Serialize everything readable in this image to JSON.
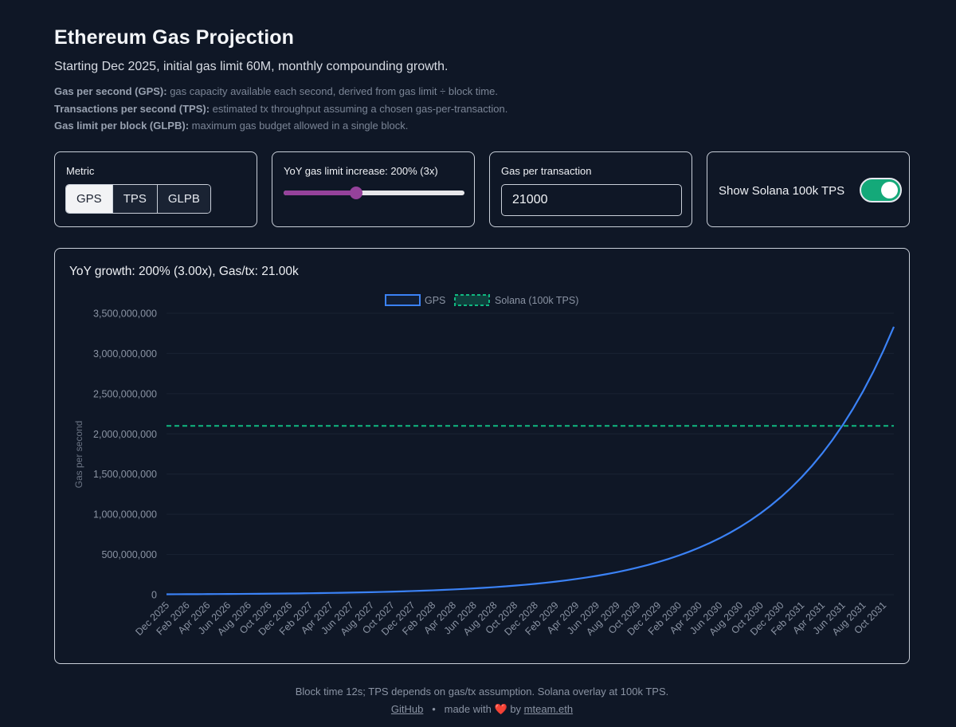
{
  "header": {
    "title": "Ethereum Gas Projection",
    "subtitle": "Starting Dec 2025, initial gas limit 60M, monthly compounding growth."
  },
  "definitions": [
    {
      "term": "Gas per second (GPS):",
      "text": " gas capacity available each second, derived from gas limit ÷ block time."
    },
    {
      "term": "Transactions per second (TPS):",
      "text": " estimated tx throughput assuming a chosen gas-per-transaction."
    },
    {
      "term": "Gas limit per block (GLPB):",
      "text": " maximum gas budget allowed in a single block."
    }
  ],
  "controls": {
    "metric": {
      "label": "Metric",
      "options": [
        "GPS",
        "TPS",
        "GLPB"
      ],
      "selected": "GPS"
    },
    "growth": {
      "label": "YoY gas limit increase: 200% (3x)",
      "value": 200,
      "min": 0,
      "max": 500
    },
    "gas_per_tx": {
      "label": "Gas per transaction",
      "value": "21000"
    },
    "solana": {
      "label": "Show Solana 100k TPS",
      "enabled": true
    }
  },
  "chart_heading": "YoY growth: 200% (3.00x), Gas/tx: 21.00k",
  "colors": {
    "gps_line": "#3b82f6",
    "solana_line": "#10b981",
    "slider": "#95429b"
  },
  "chart_data": {
    "type": "line",
    "title": "YoY growth: 200% (3.00x), Gas/tx: 21.00k",
    "xlabel": "",
    "ylabel": "Gas per second",
    "ylim": [
      0,
      3500000000
    ],
    "yticks": [
      0,
      500000000,
      1000000000,
      1500000000,
      2000000000,
      2500000000,
      3000000000,
      3500000000
    ],
    "ytick_labels": [
      "0",
      "500,000,000",
      "1,000,000,000",
      "1,500,000,000",
      "2,000,000,000",
      "2,500,000,000",
      "3,000,000,000",
      "3,500,000,000"
    ],
    "legend": [
      "GPS",
      "Solana (100k TPS)"
    ],
    "legend_position": "top-center",
    "categories": [
      "Dec 2025",
      "Jan 2026",
      "Feb 2026",
      "Mar 2026",
      "Apr 2026",
      "May 2026",
      "Jun 2026",
      "Jul 2026",
      "Aug 2026",
      "Sep 2026",
      "Oct 2026",
      "Nov 2026",
      "Dec 2026",
      "Jan 2027",
      "Feb 2027",
      "Mar 2027",
      "Apr 2027",
      "May 2027",
      "Jun 2027",
      "Jul 2027",
      "Aug 2027",
      "Sep 2027",
      "Oct 2027",
      "Nov 2027",
      "Dec 2027",
      "Jan 2028",
      "Feb 2028",
      "Mar 2028",
      "Apr 2028",
      "May 2028",
      "Jun 2028",
      "Jul 2028",
      "Aug 2028",
      "Sep 2028",
      "Oct 2028",
      "Nov 2028",
      "Dec 2028",
      "Jan 2029",
      "Feb 2029",
      "Mar 2029",
      "Apr 2029",
      "May 2029",
      "Jun 2029",
      "Jul 2029",
      "Aug 2029",
      "Sep 2029",
      "Oct 2029",
      "Nov 2029",
      "Dec 2029",
      "Jan 2030",
      "Feb 2030",
      "Mar 2030",
      "Apr 2030",
      "May 2030",
      "Jun 2030",
      "Jul 2030",
      "Aug 2030",
      "Sep 2030",
      "Oct 2030",
      "Nov 2030",
      "Dec 2030",
      "Jan 2031",
      "Feb 2031",
      "Mar 2031",
      "Apr 2031",
      "May 2031",
      "Jun 2031",
      "Jul 2031",
      "Aug 2031",
      "Sep 2031",
      "Oct 2031",
      "Nov 2031"
    ],
    "tick_labels": [
      "Dec 2025",
      "Feb 2026",
      "Apr 2026",
      "Jun 2026",
      "Aug 2026",
      "Oct 2026",
      "Dec 2026",
      "Feb 2027",
      "Apr 2027",
      "Jun 2027",
      "Aug 2027",
      "Oct 2027",
      "Dec 2027",
      "Feb 2028",
      "Apr 2028",
      "Jun 2028",
      "Aug 2028",
      "Oct 2028",
      "Dec 2028",
      "Feb 2029",
      "Apr 2029",
      "Jun 2029",
      "Aug 2029",
      "Oct 2029",
      "Dec 2029",
      "Feb 2030",
      "Apr 2030",
      "Jun 2030",
      "Aug 2030",
      "Oct 2030",
      "Dec 2030",
      "Feb 2031",
      "Apr 2031",
      "Jun 2031",
      "Aug 2031",
      "Oct 2031"
    ],
    "series": [
      {
        "name": "GPS",
        "start": 5000000,
        "monthly_factor": 1.0959,
        "style": "solid"
      },
      {
        "name": "Solana (100k TPS)",
        "constant": 2100000000,
        "style": "dashed"
      }
    ]
  },
  "footer": {
    "note": "Block time 12s; TPS depends on gas/tx assumption. Solana overlay at 100k TPS.",
    "github": "GitHub",
    "separator": "•",
    "made_with": "made with",
    "heart": "❤️",
    "by": "by",
    "author": "mteam.eth"
  }
}
